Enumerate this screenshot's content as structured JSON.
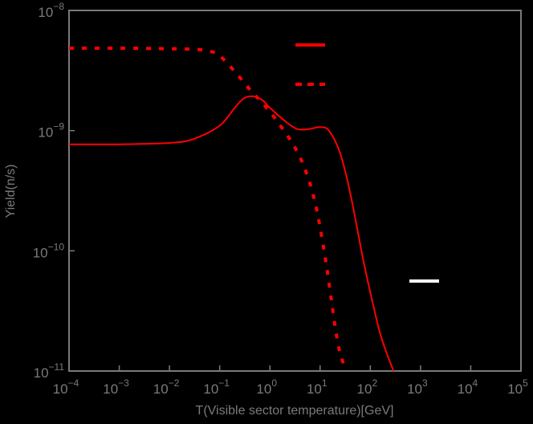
{
  "chart_data": {
    "type": "line",
    "title": "",
    "xlabel": "T(Visible sector temperature)[GeV]",
    "ylabel": "Yield(n/s)",
    "xscale": "log",
    "yscale": "log",
    "xlim": [
      0.0001,
      100000
    ],
    "ylim": [
      1e-11,
      1e-08
    ],
    "x_ticks": [
      "10^-4",
      "10^-3",
      "10^-2",
      "10^-1",
      "10^0",
      "10^1",
      "10^2",
      "10^3",
      "10^4",
      "10^5"
    ],
    "y_ticks": [
      "10^-8",
      "10^-9",
      "10^-10",
      "10^-11"
    ],
    "grid": false,
    "legend_position": "upper right (inside plot)",
    "series": [
      {
        "name": "",
        "style": "solid",
        "color": "#ff0000",
        "x": [
          0.0001,
          0.001,
          0.01,
          0.03,
          0.1,
          0.2,
          0.3,
          0.46,
          0.7,
          1.0,
          2.0,
          3.5,
          6.0,
          10.0,
          15.0,
          25.0,
          40.0,
          70.0,
          100.0,
          150.0,
          200.0,
          290.0
        ],
        "values": [
          7.7e-10,
          7.7e-10,
          7.9e-10,
          8.5e-10,
          1.1e-09,
          1.55e-09,
          1.85e-09,
          1.93e-09,
          1.8e-09,
          1.55e-09,
          1.2e-09,
          1.03e-09,
          1.03e-09,
          1.07e-09,
          1e-09,
          6.5e-10,
          3e-10,
          9e-11,
          4.5e-11,
          2.2e-11,
          1.5e-11,
          1e-11
        ]
      },
      {
        "name": "",
        "style": "dashed",
        "color": "#ff0000",
        "x": [
          0.0001,
          0.001,
          0.01,
          0.03,
          0.06,
          0.1,
          0.2,
          0.4,
          0.8,
          1.5,
          3.0,
          5.0,
          8.0,
          12.0,
          16.0,
          20.0,
          25.0,
          32.0
        ],
        "values": [
          4.85e-09,
          4.85e-09,
          4.8e-09,
          4.75e-09,
          4.6e-09,
          4.2e-09,
          3.1e-09,
          2.2e-09,
          1.6e-09,
          1.15e-09,
          7.5e-10,
          4.8e-10,
          2.5e-10,
          1e-10,
          4.5e-11,
          2.3e-11,
          1.4e-11,
          1.05e-11
        ]
      }
    ],
    "annotations": [
      {
        "type": "white-line-marker",
        "x_range": [
          600,
          1800
        ],
        "y": 5.8e-11
      }
    ]
  },
  "labels": {
    "xlabel": "T(Visible sector temperature)[GeV]",
    "ylabel": "Yield(n/s)"
  },
  "x_tick_labels": [
    {
      "base": "10",
      "exp": "−4"
    },
    {
      "base": "10",
      "exp": "−3"
    },
    {
      "base": "10",
      "exp": "−2"
    },
    {
      "base": "10",
      "exp": "−1"
    },
    {
      "base": "10",
      "exp": "0"
    },
    {
      "base": "10",
      "exp": "1"
    },
    {
      "base": "10",
      "exp": "2"
    },
    {
      "base": "10",
      "exp": "3"
    },
    {
      "base": "10",
      "exp": "4"
    },
    {
      "base": "10",
      "exp": "5"
    }
  ],
  "y_tick_labels": [
    {
      "base": "10",
      "exp": "−8"
    },
    {
      "base": "10",
      "exp": "−9"
    },
    {
      "base": "10",
      "exp": "−10"
    },
    {
      "base": "10",
      "exp": "−11"
    }
  ],
  "colors": {
    "background": "#000000",
    "axis": "#7a7a7a",
    "series": "#ff0000",
    "marker": "#ffffff"
  }
}
